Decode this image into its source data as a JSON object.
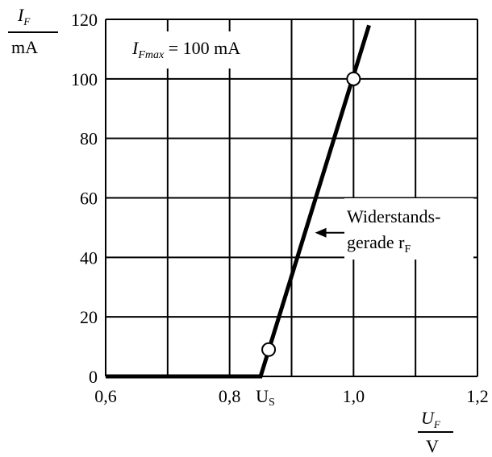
{
  "chart_data": {
    "type": "line",
    "x_axis": {
      "range": [
        0.6,
        1.2
      ],
      "ticks": [
        0.6,
        0.7,
        0.8,
        0.9,
        1.0,
        1.1,
        1.2
      ],
      "tick_labels": [
        {
          "x": 0.6,
          "label": "0,6"
        },
        {
          "x": 0.8,
          "label": "0,8"
        },
        {
          "x": 1.0,
          "label": "1,0"
        },
        {
          "x": 1.2,
          "label": "1,2"
        }
      ],
      "label_symbol": "U",
      "label_sub": "F",
      "label_unit": "V"
    },
    "y_axis": {
      "range": [
        0,
        120
      ],
      "ticks": [
        0,
        20,
        40,
        60,
        80,
        100,
        120
      ],
      "tick_labels": [
        {
          "y": 0,
          "label": "0"
        },
        {
          "y": 20,
          "label": "20"
        },
        {
          "y": 40,
          "label": "40"
        },
        {
          "y": 60,
          "label": "60"
        },
        {
          "y": 80,
          "label": "80"
        },
        {
          "y": 100,
          "label": "100"
        },
        {
          "y": 120,
          "label": "120"
        }
      ],
      "label_symbol": "I",
      "label_sub": "F",
      "label_unit": "mA"
    },
    "grid": true,
    "series": [
      {
        "points": [
          {
            "x": 0.6,
            "y": 0
          },
          {
            "x": 0.85,
            "y": 0
          },
          {
            "x": 1.025,
            "y": 118
          }
        ]
      }
    ],
    "markers": [
      {
        "x": 0.863,
        "y": 9
      },
      {
        "x": 1.0,
        "y": 100
      }
    ],
    "annotations": {
      "imax": {
        "sym": "I",
        "sub": "Fmax",
        "rest": " = 100 mA"
      },
      "us": {
        "x": 0.85,
        "main": "U",
        "sub": "S"
      },
      "resistance_line": {
        "line1": "Widerstands-",
        "line2_main": "gerade r",
        "line2_sub": "F",
        "arrow_target": {
          "x": 0.93,
          "y": 48
        }
      }
    }
  }
}
